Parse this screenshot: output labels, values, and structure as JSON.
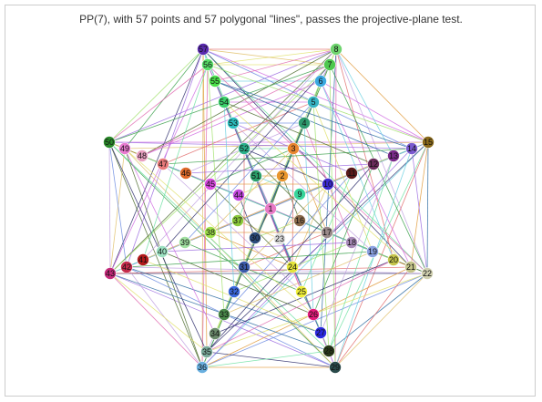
{
  "title": "PP(7), with 57 points and 57 polygonal \"lines\", passes the projective-plane test.",
  "diagram": {
    "node_count": 57,
    "line_count": 57,
    "points": [
      {
        "id": "1",
        "label": "1",
        "color": "#e87ac6"
      },
      {
        "id": "2",
        "label": "2",
        "color": "#e8962e"
      },
      {
        "id": "3",
        "label": "3",
        "color": "#e8862e"
      },
      {
        "id": "4",
        "label": "4",
        "color": "#2e9a6e"
      },
      {
        "id": "5",
        "label": "5",
        "color": "#36b4c4"
      },
      {
        "id": "6",
        "label": "6",
        "color": "#3aa8e0"
      },
      {
        "id": "7",
        "label": "7",
        "color": "#4ec84e"
      },
      {
        "id": "8",
        "label": "8",
        "color": "#6ed46e"
      },
      {
        "id": "9",
        "label": "9",
        "color": "#36d49a"
      },
      {
        "id": "10",
        "label": "10",
        "color": "#3a2ad0"
      },
      {
        "id": "11",
        "label": "11",
        "color": "#5a1a1a"
      },
      {
        "id": "12",
        "label": "12",
        "color": "#6a2a5a"
      },
      {
        "id": "13",
        "label": "13",
        "color": "#7a2a8a"
      },
      {
        "id": "14",
        "label": "14",
        "color": "#7a5ad0"
      },
      {
        "id": "15",
        "label": "15",
        "color": "#8a6a1a"
      },
      {
        "id": "16",
        "label": "16",
        "color": "#8a6a4a"
      },
      {
        "id": "17",
        "label": "17",
        "color": "#9a8a8a"
      },
      {
        "id": "18",
        "label": "18",
        "color": "#a88ab8"
      },
      {
        "id": "19",
        "label": "19",
        "color": "#8aa0e0"
      },
      {
        "id": "20",
        "label": "20",
        "color": "#c4c44a"
      },
      {
        "id": "21",
        "label": "21",
        "color": "#c4c48a"
      },
      {
        "id": "22",
        "label": "22",
        "color": "#d0d0b0"
      },
      {
        "id": "23",
        "label": "23",
        "color": "#dddddd"
      },
      {
        "id": "24",
        "label": "24",
        "color": "#e4e43a"
      },
      {
        "id": "25",
        "label": "25",
        "color": "#f0f03a"
      },
      {
        "id": "26",
        "label": "26",
        "color": "#e41a7a"
      },
      {
        "id": "27",
        "label": "27",
        "color": "#2a2ae0"
      },
      {
        "id": "28",
        "label": "28",
        "color": "#2a3a1a"
      },
      {
        "id": "29",
        "label": "29",
        "color": "#2a4a4a"
      },
      {
        "id": "30",
        "label": "30",
        "color": "#2a4a7a"
      },
      {
        "id": "31",
        "label": "31",
        "color": "#3a5aaa"
      },
      {
        "id": "32",
        "label": "32",
        "color": "#3a6ae0"
      },
      {
        "id": "33",
        "label": "33",
        "color": "#4a8a4a"
      },
      {
        "id": "34",
        "label": "34",
        "color": "#6a8a6a"
      },
      {
        "id": "35",
        "label": "35",
        "color": "#7aaa9a"
      },
      {
        "id": "36",
        "label": "36",
        "color": "#6ab0e0"
      },
      {
        "id": "37",
        "label": "37",
        "color": "#8ac83a"
      },
      {
        "id": "38",
        "label": "38",
        "color": "#a0e04a"
      },
      {
        "id": "39",
        "label": "39",
        "color": "#a0e0a0"
      },
      {
        "id": "40",
        "label": "40",
        "color": "#9ae0c0"
      },
      {
        "id": "41",
        "label": "41",
        "color": "#b01a1a"
      },
      {
        "id": "42",
        "label": "42",
        "color": "#c42a4a"
      },
      {
        "id": "43",
        "label": "43",
        "color": "#c42a7a"
      },
      {
        "id": "44",
        "label": "44",
        "color": "#c44ae0"
      },
      {
        "id": "45",
        "label": "45",
        "color": "#d84ae0"
      },
      {
        "id": "46",
        "label": "46",
        "color": "#e06a2a"
      },
      {
        "id": "47",
        "label": "47",
        "color": "#e87a7a"
      },
      {
        "id": "48",
        "label": "48",
        "color": "#e8a0c0"
      },
      {
        "id": "49",
        "label": "49",
        "color": "#e87ad0"
      },
      {
        "id": "50",
        "label": "50",
        "color": "#2a8a2a"
      },
      {
        "id": "51",
        "label": "51",
        "color": "#2aa06a"
      },
      {
        "id": "52",
        "label": "52",
        "color": "#2ab08a"
      },
      {
        "id": "53",
        "label": "53",
        "color": "#2ac0c0"
      },
      {
        "id": "54",
        "label": "54",
        "color": "#3ad06a"
      },
      {
        "id": "55",
        "label": "55",
        "color": "#4ae04a"
      },
      {
        "id": "56",
        "label": "56",
        "color": "#5ae06a"
      },
      {
        "id": "57",
        "label": "57",
        "color": "#5a2ab0"
      }
    ],
    "line_colors": [
      "#e06a6a",
      "#6ad0e0",
      "#a0e06a",
      "#d06ae0",
      "#e0c06a",
      "#6a8ae0",
      "#2a2a6a",
      "#6ae0a0",
      "#e09a3a",
      "#9a6ae0",
      "#3aa04a",
      "#e06ab0",
      "#4a6a2a",
      "#c0a0e0",
      "#e0e06a",
      "#2a6aa0"
    ],
    "edge_pairs": [
      [
        "57",
        "8"
      ],
      [
        "57",
        "56"
      ],
      [
        "57",
        "50"
      ],
      [
        "57",
        "15"
      ],
      [
        "57",
        "36"
      ],
      [
        "57",
        "29"
      ],
      [
        "57",
        "43"
      ],
      [
        "57",
        "22"
      ],
      [
        "8",
        "15"
      ],
      [
        "8",
        "50"
      ],
      [
        "8",
        "36"
      ],
      [
        "8",
        "29"
      ],
      [
        "8",
        "43"
      ],
      [
        "8",
        "22"
      ],
      [
        "8",
        "56"
      ],
      [
        "15",
        "22"
      ],
      [
        "15",
        "29"
      ],
      [
        "15",
        "36"
      ],
      [
        "15",
        "43"
      ],
      [
        "15",
        "50"
      ],
      [
        "22",
        "29"
      ],
      [
        "22",
        "36"
      ],
      [
        "22",
        "43"
      ],
      [
        "22",
        "50"
      ],
      [
        "29",
        "36"
      ],
      [
        "29",
        "43"
      ],
      [
        "29",
        "50"
      ],
      [
        "36",
        "43"
      ],
      [
        "36",
        "50"
      ],
      [
        "43",
        "50"
      ],
      [
        "56",
        "7"
      ],
      [
        "56",
        "55"
      ],
      [
        "55",
        "54"
      ],
      [
        "55",
        "6"
      ],
      [
        "54",
        "53"
      ],
      [
        "54",
        "5"
      ],
      [
        "53",
        "52"
      ],
      [
        "53",
        "4"
      ],
      [
        "52",
        "51"
      ],
      [
        "52",
        "3"
      ],
      [
        "51",
        "2"
      ],
      [
        "7",
        "6"
      ],
      [
        "6",
        "5"
      ],
      [
        "5",
        "4"
      ],
      [
        "4",
        "3"
      ],
      [
        "3",
        "2"
      ],
      [
        "14",
        "13"
      ],
      [
        "13",
        "12"
      ],
      [
        "12",
        "11"
      ],
      [
        "11",
        "10"
      ],
      [
        "10",
        "9"
      ],
      [
        "21",
        "20"
      ],
      [
        "20",
        "19"
      ],
      [
        "19",
        "18"
      ],
      [
        "18",
        "17"
      ],
      [
        "17",
        "16"
      ],
      [
        "28",
        "27"
      ],
      [
        "27",
        "26"
      ],
      [
        "26",
        "25"
      ],
      [
        "25",
        "24"
      ],
      [
        "24",
        "23"
      ],
      [
        "35",
        "34"
      ],
      [
        "34",
        "33"
      ],
      [
        "33",
        "32"
      ],
      [
        "32",
        "31"
      ],
      [
        "31",
        "30"
      ],
      [
        "42",
        "41"
      ],
      [
        "41",
        "40"
      ],
      [
        "40",
        "39"
      ],
      [
        "39",
        "38"
      ],
      [
        "38",
        "37"
      ],
      [
        "49",
        "48"
      ],
      [
        "48",
        "47"
      ],
      [
        "47",
        "46"
      ],
      [
        "46",
        "45"
      ],
      [
        "45",
        "44"
      ],
      [
        "1",
        "2"
      ],
      [
        "1",
        "9"
      ],
      [
        "1",
        "16"
      ],
      [
        "1",
        "23"
      ],
      [
        "1",
        "30"
      ],
      [
        "1",
        "37"
      ],
      [
        "1",
        "44"
      ],
      [
        "1",
        "51"
      ],
      [
        "57",
        "7"
      ],
      [
        "57",
        "14"
      ],
      [
        "57",
        "21"
      ],
      [
        "57",
        "28"
      ],
      [
        "57",
        "35"
      ],
      [
        "57",
        "42"
      ],
      [
        "57",
        "49"
      ],
      [
        "8",
        "55"
      ],
      [
        "8",
        "48"
      ],
      [
        "8",
        "41"
      ],
      [
        "8",
        "34"
      ],
      [
        "8",
        "27"
      ],
      [
        "8",
        "20"
      ],
      [
        "8",
        "13"
      ],
      [
        "15",
        "56"
      ],
      [
        "15",
        "6"
      ],
      [
        "15",
        "49"
      ],
      [
        "15",
        "42"
      ],
      [
        "15",
        "35"
      ],
      [
        "15",
        "28"
      ],
      [
        "15",
        "21"
      ],
      [
        "22",
        "14"
      ],
      [
        "22",
        "7"
      ],
      [
        "22",
        "56"
      ],
      [
        "22",
        "49"
      ],
      [
        "22",
        "42"
      ],
      [
        "22",
        "35"
      ],
      [
        "22",
        "28"
      ],
      [
        "29",
        "21"
      ],
      [
        "29",
        "14"
      ],
      [
        "29",
        "7"
      ],
      [
        "29",
        "56"
      ],
      [
        "29",
        "49"
      ],
      [
        "29",
        "42"
      ],
      [
        "29",
        "35"
      ],
      [
        "36",
        "28"
      ],
      [
        "36",
        "21"
      ],
      [
        "36",
        "14"
      ],
      [
        "36",
        "7"
      ],
      [
        "36",
        "56"
      ],
      [
        "36",
        "49"
      ],
      [
        "36",
        "42"
      ],
      [
        "43",
        "35"
      ],
      [
        "43",
        "28"
      ],
      [
        "43",
        "21"
      ],
      [
        "43",
        "14"
      ],
      [
        "43",
        "7"
      ],
      [
        "43",
        "56"
      ],
      [
        "43",
        "49"
      ],
      [
        "50",
        "42"
      ],
      [
        "50",
        "35"
      ],
      [
        "50",
        "28"
      ],
      [
        "50",
        "21"
      ],
      [
        "50",
        "14"
      ],
      [
        "50",
        "7"
      ],
      [
        "50",
        "56"
      ],
      [
        "2",
        "16"
      ],
      [
        "2",
        "30"
      ],
      [
        "2",
        "44"
      ],
      [
        "9",
        "23"
      ],
      [
        "9",
        "37"
      ],
      [
        "9",
        "51"
      ],
      [
        "16",
        "30"
      ],
      [
        "16",
        "44"
      ],
      [
        "23",
        "37"
      ],
      [
        "23",
        "51"
      ],
      [
        "30",
        "44"
      ],
      [
        "37",
        "51"
      ],
      [
        "3",
        "17"
      ],
      [
        "3",
        "31"
      ],
      [
        "3",
        "45"
      ],
      [
        "4",
        "18"
      ],
      [
        "4",
        "32"
      ],
      [
        "4",
        "46"
      ],
      [
        "5",
        "19"
      ],
      [
        "5",
        "33"
      ],
      [
        "5",
        "47"
      ],
      [
        "6",
        "20"
      ],
      [
        "6",
        "34"
      ],
      [
        "6",
        "48"
      ],
      [
        "10",
        "24"
      ],
      [
        "10",
        "38"
      ],
      [
        "10",
        "52"
      ],
      [
        "11",
        "25"
      ],
      [
        "11",
        "39"
      ],
      [
        "11",
        "53"
      ],
      [
        "12",
        "26"
      ],
      [
        "12",
        "40"
      ],
      [
        "12",
        "54"
      ],
      [
        "13",
        "27"
      ],
      [
        "13",
        "41"
      ],
      [
        "13",
        "55"
      ],
      [
        "17",
        "31"
      ],
      [
        "17",
        "45"
      ],
      [
        "18",
        "32"
      ],
      [
        "18",
        "46"
      ],
      [
        "19",
        "33"
      ],
      [
        "19",
        "47"
      ],
      [
        "20",
        "34"
      ],
      [
        "20",
        "48"
      ],
      [
        "24",
        "38"
      ],
      [
        "24",
        "52"
      ],
      [
        "25",
        "39"
      ],
      [
        "25",
        "53"
      ],
      [
        "26",
        "40"
      ],
      [
        "26",
        "54"
      ],
      [
        "27",
        "41"
      ],
      [
        "27",
        "55"
      ],
      [
        "3",
        "24"
      ],
      [
        "4",
        "26"
      ],
      [
        "5",
        "28"
      ],
      [
        "6",
        "21"
      ],
      [
        "10",
        "31"
      ],
      [
        "11",
        "33"
      ],
      [
        "12",
        "35"
      ],
      [
        "13",
        "28"
      ],
      [
        "17",
        "38"
      ],
      [
        "18",
        "40"
      ],
      [
        "19",
        "42"
      ],
      [
        "20",
        "35"
      ],
      [
        "24",
        "45"
      ],
      [
        "25",
        "47"
      ],
      [
        "26",
        "49"
      ],
      [
        "27",
        "42"
      ],
      [
        "31",
        "52"
      ],
      [
        "32",
        "54"
      ],
      [
        "33",
        "56"
      ],
      [
        "34",
        "49"
      ],
      [
        "38",
        "3"
      ],
      [
        "39",
        "5"
      ],
      [
        "40",
        "7"
      ],
      [
        "41",
        "56"
      ],
      [
        "45",
        "10"
      ],
      [
        "46",
        "12"
      ],
      [
        "47",
        "14"
      ],
      [
        "48",
        "7"
      ],
      [
        "52",
        "17"
      ],
      [
        "53",
        "19"
      ],
      [
        "54",
        "21"
      ],
      [
        "55",
        "14"
      ]
    ]
  }
}
